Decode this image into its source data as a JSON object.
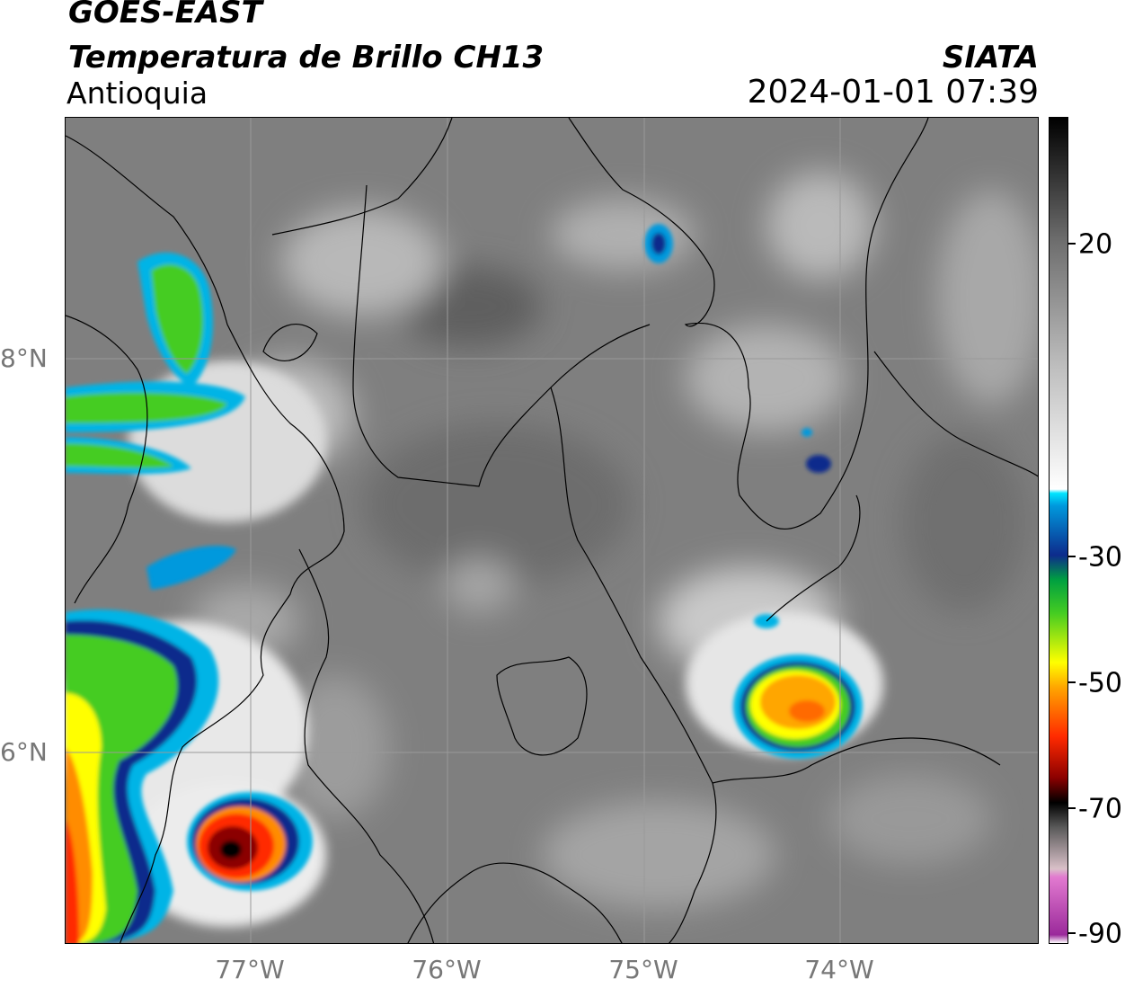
{
  "header": {
    "satellite": "GOES-EAST",
    "product": "Temperatura de Brillo CH13",
    "region": "Antioquia",
    "organization": "SIATA",
    "datetime": "2024-01-01 07:39"
  },
  "axes": {
    "lat_labels": [
      "8°N",
      "6°N"
    ],
    "lon_labels": [
      "77°W",
      "76°W",
      "75°W",
      "74°W"
    ]
  },
  "colorbar": {
    "ticks": [
      "20",
      "-30",
      "-50",
      "-70",
      "-90"
    ],
    "stops": [
      {
        "v": 0.0,
        "c": "#ffffff"
      },
      {
        "v": 0.01,
        "c": "#9b2a9b"
      },
      {
        "v": 0.08,
        "c": "#e27ad0"
      },
      {
        "v": 0.09,
        "c": "#d9c0c8"
      },
      {
        "v": 0.14,
        "c": "#5a5a5a"
      },
      {
        "v": 0.17,
        "c": "#000000"
      },
      {
        "v": 0.2,
        "c": "#8b0000"
      },
      {
        "v": 0.25,
        "c": "#ff2a00"
      },
      {
        "v": 0.31,
        "c": "#ffa600"
      },
      {
        "v": 0.34,
        "c": "#ffff00"
      },
      {
        "v": 0.4,
        "c": "#44cc22"
      },
      {
        "v": 0.44,
        "c": "#00a040"
      },
      {
        "v": 0.47,
        "c": "#0d2b8c"
      },
      {
        "v": 0.53,
        "c": "#0099dd"
      },
      {
        "v": 0.545,
        "c": "#00e5ff"
      },
      {
        "v": 0.55,
        "c": "#ffffff"
      },
      {
        "v": 0.7,
        "c": "#bdbdbd"
      },
      {
        "v": 0.85,
        "c": "#6e6e6e"
      },
      {
        "v": 1.0,
        "c": "#000000"
      }
    ]
  },
  "colors": {
    "background_gray": "#808080",
    "cold_cloud_core": "#ff2a00"
  }
}
